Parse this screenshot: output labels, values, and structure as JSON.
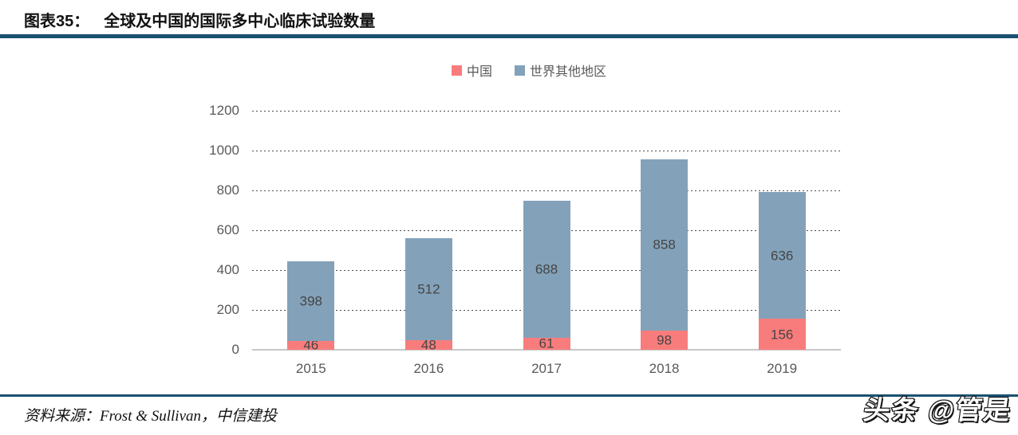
{
  "header": {
    "figure_label": "图表35：",
    "title": "全球及中国的国际多中心临床试验数量"
  },
  "colors": {
    "rule": "#1a506f",
    "tick_text": "#595959",
    "bar_label": "#454545",
    "baseline": "#c8c8c8",
    "china": "#f97c7c",
    "world": "#83a2ba"
  },
  "chart_data": {
    "type": "bar",
    "stacked": true,
    "title": "全球及中国的国际多中心临床试验数量",
    "categories": [
      "2015",
      "2016",
      "2017",
      "2018",
      "2019"
    ],
    "series": [
      {
        "key": "china",
        "name": "中国",
        "color": "#f97c7c",
        "values": [
          46,
          48,
          61,
          98,
          156
        ]
      },
      {
        "key": "world",
        "name": "世界其他地区",
        "color": "#83a2ba",
        "values": [
          398,
          512,
          688,
          858,
          636
        ]
      }
    ],
    "totals": [
      444,
      560,
      749,
      956,
      792
    ],
    "xlabel": "",
    "ylabel": "",
    "ylim": [
      0,
      1200
    ],
    "yticks": [
      0,
      200,
      400,
      600,
      800,
      1000,
      1200
    ],
    "legend_position": "top-center",
    "grid": "horizontal-dashed",
    "data_labels": "inside-segment"
  },
  "footer": {
    "source": "资料来源：Frost & Sullivan，中信建投",
    "watermark": "头条 @管是"
  }
}
